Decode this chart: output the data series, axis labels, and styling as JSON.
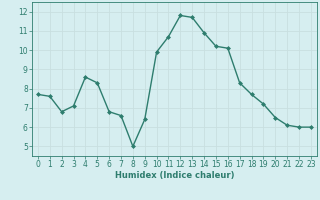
{
  "x": [
    0,
    1,
    2,
    3,
    4,
    5,
    6,
    7,
    8,
    9,
    10,
    11,
    12,
    13,
    14,
    15,
    16,
    17,
    18,
    19,
    20,
    21,
    22,
    23
  ],
  "y": [
    7.7,
    7.6,
    6.8,
    7.1,
    8.6,
    8.3,
    6.8,
    6.6,
    5.0,
    6.4,
    9.9,
    10.7,
    11.8,
    11.7,
    10.9,
    10.2,
    10.1,
    8.3,
    7.7,
    7.2,
    6.5,
    6.1,
    6.0,
    6.0
  ],
  "line_color": "#2e7d6e",
  "marker": "D",
  "marker_size": 2.0,
  "xlabel": "Humidex (Indice chaleur)",
  "ylim": [
    4.5,
    12.5
  ],
  "xlim": [
    -0.5,
    23.5
  ],
  "yticks": [
    5,
    6,
    7,
    8,
    9,
    10,
    11,
    12
  ],
  "xticks": [
    0,
    1,
    2,
    3,
    4,
    5,
    6,
    7,
    8,
    9,
    10,
    11,
    12,
    13,
    14,
    15,
    16,
    17,
    18,
    19,
    20,
    21,
    22,
    23
  ],
  "bg_color": "#d6eef0",
  "grid_color": "#c8dfe0",
  "label_color": "#2e7d6e",
  "xlabel_fontsize": 6.0,
  "tick_fontsize": 5.5,
  "linewidth": 1.0
}
